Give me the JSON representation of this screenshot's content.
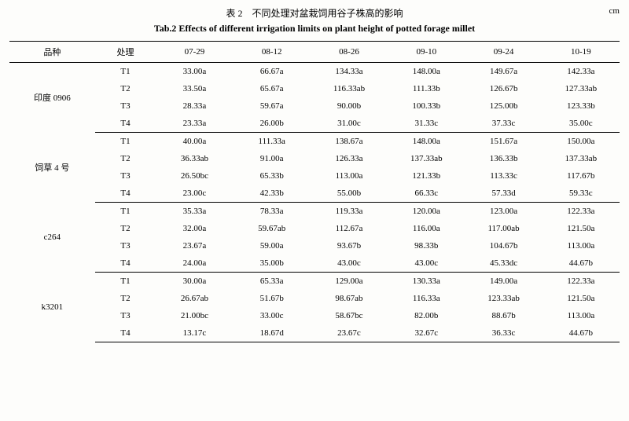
{
  "title_cn": "表 2　不同处理对盆栽饲用谷子株高的影响",
  "unit": "cm",
  "title_en": "Tab.2 Effects of different irrigation limits on plant height of potted forage millet",
  "headers": {
    "variety": "品种",
    "treatment": "处理",
    "dates": [
      "07-29",
      "08-12",
      "08-26",
      "09-10",
      "09-24",
      "10-19"
    ]
  },
  "groups": [
    {
      "variety": "印度 0906",
      "rows": [
        {
          "treatment": "T1",
          "values": [
            "33.00a",
            "66.67a",
            "134.33a",
            "148.00a",
            "149.67a",
            "142.33a"
          ]
        },
        {
          "treatment": "T2",
          "values": [
            "33.50a",
            "65.67a",
            "116.33ab",
            "111.33b",
            "126.67b",
            "127.33ab"
          ]
        },
        {
          "treatment": "T3",
          "values": [
            "28.33a",
            "59.67a",
            "90.00b",
            "100.33b",
            "125.00b",
            "123.33b"
          ]
        },
        {
          "treatment": "T4",
          "values": [
            "23.33a",
            "26.00b",
            "31.00c",
            "31.33c",
            "37.33c",
            "35.00c"
          ]
        }
      ]
    },
    {
      "variety": "饲草 4 号",
      "rows": [
        {
          "treatment": "T1",
          "values": [
            "40.00a",
            "111.33a",
            "138.67a",
            "148.00a",
            "151.67a",
            "150.00a"
          ]
        },
        {
          "treatment": "T2",
          "values": [
            "36.33ab",
            "91.00a",
            "126.33a",
            "137.33ab",
            "136.33b",
            "137.33ab"
          ]
        },
        {
          "treatment": "T3",
          "values": [
            "26.50bc",
            "65.33b",
            "113.00a",
            "121.33b",
            "113.33c",
            "117.67b"
          ]
        },
        {
          "treatment": "T4",
          "values": [
            "23.00c",
            "42.33b",
            "55.00b",
            "66.33c",
            "57.33d",
            "59.33c"
          ]
        }
      ]
    },
    {
      "variety": "c264",
      "rows": [
        {
          "treatment": "T1",
          "values": [
            "35.33a",
            "78.33a",
            "119.33a",
            "120.00a",
            "123.00a",
            "122.33a"
          ]
        },
        {
          "treatment": "T2",
          "values": [
            "32.00a",
            "59.67ab",
            "112.67a",
            "116.00a",
            "117.00ab",
            "121.50a"
          ]
        },
        {
          "treatment": "T3",
          "values": [
            "23.67a",
            "59.00a",
            "93.67b",
            "98.33b",
            "104.67b",
            "113.00a"
          ]
        },
        {
          "treatment": "T4",
          "values": [
            "24.00a",
            "35.00b",
            "43.00c",
            "43.00c",
            "45.33dc",
            "44.67b"
          ]
        }
      ]
    },
    {
      "variety": "k3201",
      "rows": [
        {
          "treatment": "T1",
          "values": [
            "30.00a",
            "65.33a",
            "129.00a",
            "130.33a",
            "149.00a",
            "122.33a"
          ]
        },
        {
          "treatment": "T2",
          "values": [
            "26.67ab",
            "51.67b",
            "98.67ab",
            "116.33a",
            "123.33ab",
            "121.50a"
          ]
        },
        {
          "treatment": "T3",
          "values": [
            "21.00bc",
            "33.00c",
            "58.67bc",
            "82.00b",
            "88.67b",
            "113.00a"
          ]
        },
        {
          "treatment": "T4",
          "values": [
            "13.17c",
            "18.67d",
            "23.67c",
            "32.67c",
            "36.33c",
            "44.67b"
          ]
        }
      ]
    }
  ]
}
